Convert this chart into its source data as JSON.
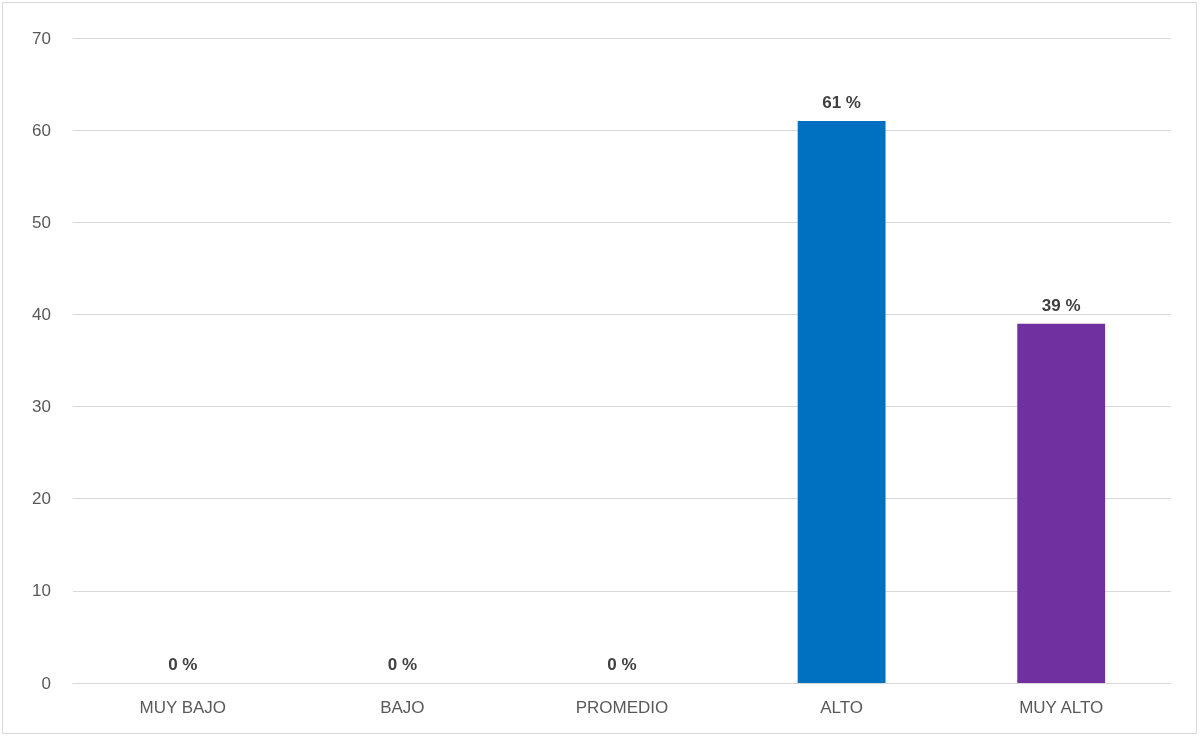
{
  "chart_data": {
    "type": "bar",
    "categories": [
      "MUY BAJO",
      "BAJO",
      "PROMEDIO",
      "ALTO",
      "MUY ALTO"
    ],
    "values": [
      0,
      0,
      0,
      61,
      39
    ],
    "colors": [
      "#0070c0",
      "#0070c0",
      "#0070c0",
      "#0070c0",
      "#7030a0"
    ],
    "value_labels": [
      "0 %",
      "0 %",
      "0 %",
      "61 %",
      "39 %"
    ],
    "ylim": [
      0,
      70
    ],
    "yticks": [
      0,
      10,
      20,
      30,
      40,
      50,
      60,
      70
    ],
    "grid": true
  }
}
